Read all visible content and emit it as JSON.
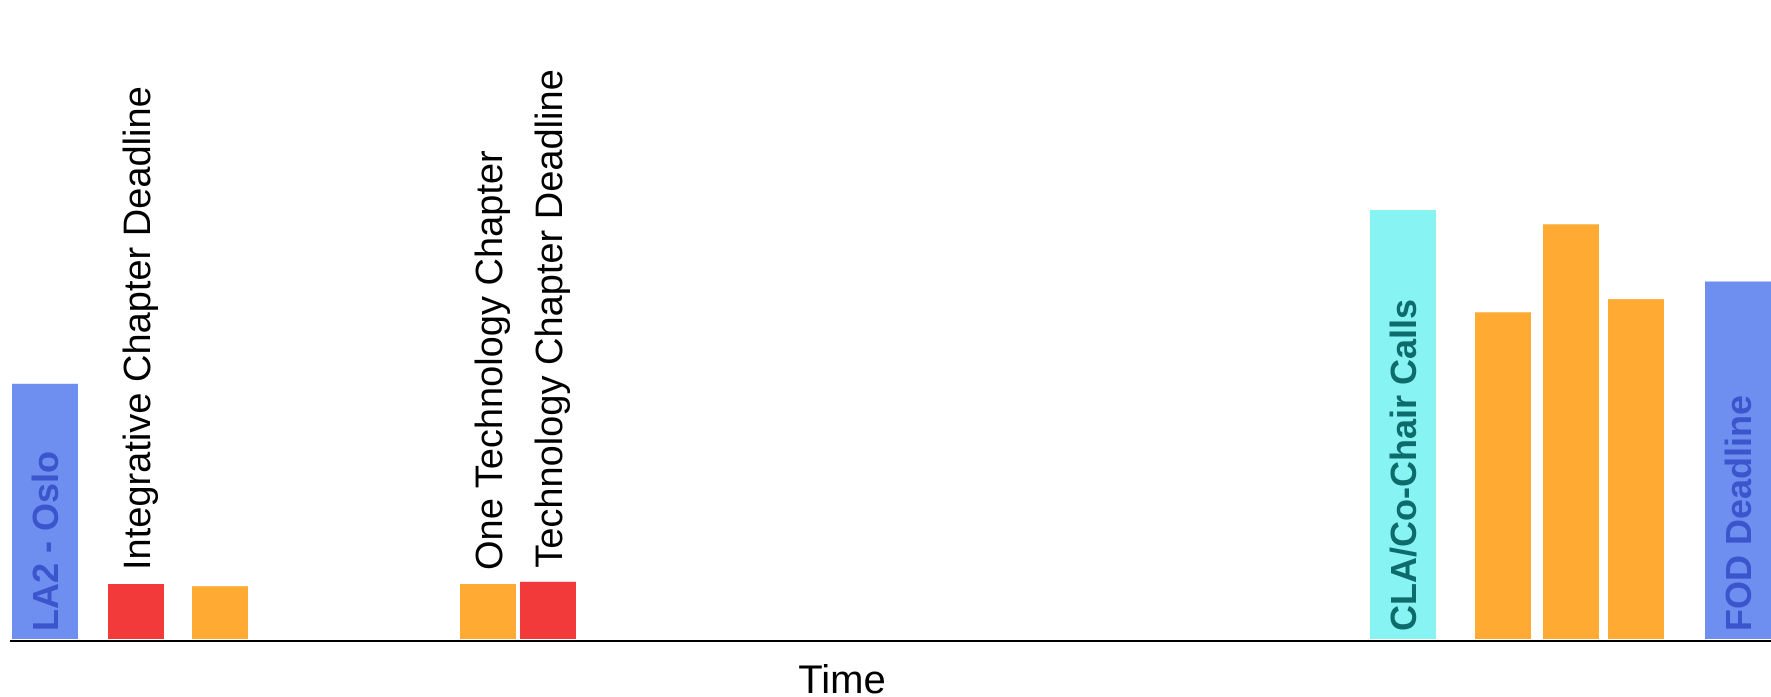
{
  "chart_data": {
    "type": "bar",
    "xlabel": "Time",
    "ylabel": "",
    "title": "",
    "grid": false,
    "legend": "none",
    "colors": {
      "blue": "#6f8ff0",
      "red": "#f23a3a",
      "orange": "#ffaa33",
      "cyan": "#88f3f3",
      "inside_text_blue": "#3b55cc",
      "inside_text_teal": "#0d6b6b",
      "axis": "#000000"
    },
    "bars": [
      {
        "id": "la2-oslo",
        "color": "blue",
        "value": 232,
        "label": "LA2 - Oslo",
        "label_position": "inside"
      },
      {
        "id": "integrative-deadline",
        "color": "red",
        "value": 50,
        "label": "Integrative Chapter Deadline",
        "label_position": "above"
      },
      {
        "id": "orange-1",
        "color": "orange",
        "value": 48,
        "label": ""
      },
      {
        "id": "one-technology",
        "color": "orange",
        "value": 50,
        "label": "One Technology Chapter",
        "label_position": "above"
      },
      {
        "id": "technology-deadline",
        "color": "red",
        "value": 52,
        "label": "Technology Chapter Deadline",
        "label_position": "above"
      },
      {
        "id": "cla-cochair",
        "color": "cyan",
        "value": 390,
        "label": "CLA/Co-Chair Calls",
        "label_position": "inside"
      },
      {
        "id": "orange-2",
        "color": "orange",
        "value": 297,
        "label": ""
      },
      {
        "id": "orange-3",
        "color": "orange",
        "value": 377,
        "label": ""
      },
      {
        "id": "orange-4",
        "color": "orange",
        "value": 309,
        "label": ""
      },
      {
        "id": "fod-deadline",
        "color": "blue",
        "value": 325,
        "label": "FOD Deadline",
        "label_position": "inside"
      }
    ]
  }
}
